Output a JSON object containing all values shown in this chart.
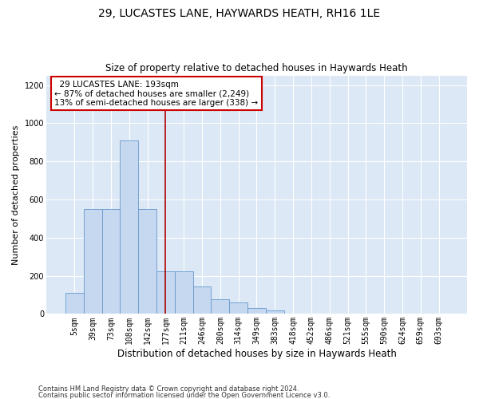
{
  "title1": "29, LUCASTES LANE, HAYWARDS HEATH, RH16 1LE",
  "title2": "Size of property relative to detached houses in Haywards Heath",
  "xlabel": "Distribution of detached houses by size in Haywards Heath",
  "ylabel": "Number of detached properties",
  "footnote1": "Contains HM Land Registry data © Crown copyright and database right 2024.",
  "footnote2": "Contains public sector information licensed under the Open Government Licence v3.0.",
  "annotation_text": "  29 LUCASTES LANE: 193sqm\n← 87% of detached houses are smaller (2,249)\n13% of semi-detached houses are larger (338) →",
  "bar_labels": [
    "5sqm",
    "39sqm",
    "73sqm",
    "108sqm",
    "142sqm",
    "177sqm",
    "211sqm",
    "246sqm",
    "280sqm",
    "314sqm",
    "349sqm",
    "383sqm",
    "418sqm",
    "452sqm",
    "486sqm",
    "521sqm",
    "555sqm",
    "590sqm",
    "624sqm",
    "659sqm",
    "693sqm"
  ],
  "bar_values": [
    110,
    550,
    550,
    910,
    550,
    225,
    225,
    145,
    75,
    60,
    30,
    20,
    0,
    0,
    0,
    0,
    0,
    0,
    0,
    0,
    0
  ],
  "bar_color": "#c5d8f0",
  "bar_edge_color": "#6699cc",
  "vline_color": "#aa0000",
  "vline_x": 5.0,
  "ylim": [
    0,
    1250
  ],
  "yticks": [
    0,
    200,
    400,
    600,
    800,
    1000,
    1200
  ],
  "background_color": "#dce8f5",
  "annotation_box_color": "#ffffff",
  "annotation_box_edge": "#cc0000",
  "title1_fontsize": 10,
  "title2_fontsize": 8.5,
  "xlabel_fontsize": 8.5,
  "ylabel_fontsize": 8,
  "tick_fontsize": 7,
  "footnote_fontsize": 6
}
